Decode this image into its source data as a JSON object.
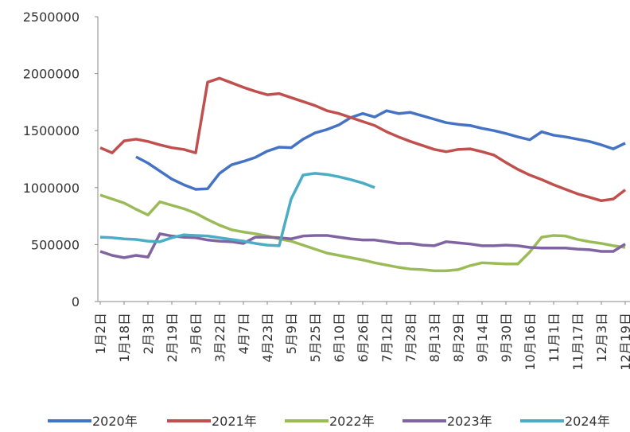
{
  "chart_data": {
    "type": "line",
    "categories": [
      "1月2日",
      null,
      "1月18日",
      null,
      "2月3日",
      null,
      "2月19日",
      null,
      "3月6日",
      null,
      "3月22日",
      null,
      "4月7日",
      null,
      "4月23日",
      null,
      "5月9日",
      null,
      "5月25日",
      null,
      "6月10日",
      null,
      "6月26日",
      null,
      "7月12日",
      null,
      "7月28日",
      null,
      "8月13日",
      null,
      "8月29日",
      null,
      "9月14日",
      null,
      "9月30日",
      null,
      "10月16日",
      null,
      "11月1日",
      null,
      "11月17日",
      null,
      "12月3日",
      null,
      "12月19日"
    ],
    "ylim": [
      0,
      2500000
    ],
    "yticks": [
      0,
      500000,
      1000000,
      1500000,
      2000000,
      2500000
    ],
    "series": [
      {
        "name": "2020年",
        "color": "#4472c4",
        "values": [
          null,
          null,
          null,
          1270000,
          1215000,
          1145000,
          1075000,
          1025000,
          985000,
          990000,
          1125000,
          1200000,
          1230000,
          1265000,
          1320000,
          1355000,
          1350000,
          1425000,
          1480000,
          1510000,
          1550000,
          1615000,
          1650000,
          1620000,
          1675000,
          1650000,
          1660000,
          1630000,
          1600000,
          1570000,
          1555000,
          1545000,
          1520000,
          1500000,
          1475000,
          1445000,
          1420000,
          1490000,
          1460000,
          1445000,
          1425000,
          1405000,
          1375000,
          1340000,
          1390000
        ]
      },
      {
        "name": "2021年",
        "color": "#c0504d",
        "values": [
          1350000,
          1305000,
          1410000,
          1425000,
          1405000,
          1375000,
          1350000,
          1335000,
          1305000,
          1925000,
          1960000,
          1920000,
          1880000,
          1845000,
          1815000,
          1825000,
          1790000,
          1755000,
          1720000,
          1675000,
          1650000,
          1615000,
          1580000,
          1545000,
          1490000,
          1445000,
          1405000,
          1370000,
          1335000,
          1315000,
          1335000,
          1340000,
          1315000,
          1285000,
          1220000,
          1160000,
          1110000,
          1070000,
          1025000,
          985000,
          945000,
          915000,
          885000,
          900000,
          980000
        ]
      },
      {
        "name": "2022年",
        "color": "#9bbb59",
        "values": [
          935000,
          900000,
          865000,
          810000,
          760000,
          875000,
          845000,
          815000,
          775000,
          720000,
          670000,
          630000,
          610000,
          595000,
          575000,
          550000,
          530000,
          495000,
          460000,
          425000,
          405000,
          385000,
          365000,
          340000,
          320000,
          300000,
          285000,
          280000,
          270000,
          270000,
          280000,
          315000,
          340000,
          335000,
          330000,
          330000,
          435000,
          565000,
          580000,
          575000,
          545000,
          525000,
          510000,
          490000,
          475000
        ]
      },
      {
        "name": "2023年",
        "color": "#8064a2",
        "values": [
          440000,
          405000,
          385000,
          405000,
          390000,
          595000,
          575000,
          565000,
          560000,
          540000,
          530000,
          525000,
          510000,
          565000,
          565000,
          560000,
          550000,
          575000,
          580000,
          580000,
          565000,
          550000,
          540000,
          540000,
          525000,
          510000,
          510000,
          495000,
          490000,
          525000,
          515000,
          505000,
          490000,
          490000,
          495000,
          490000,
          475000,
          470000,
          470000,
          470000,
          460000,
          455000,
          440000,
          440000,
          505000
        ]
      },
      {
        "name": "2024年",
        "color": "#4bacc6",
        "values": [
          565000,
          560000,
          550000,
          545000,
          530000,
          525000,
          560000,
          585000,
          580000,
          575000,
          560000,
          545000,
          530000,
          510000,
          495000,
          490000,
          900000,
          1110000,
          1125000,
          1115000,
          1095000,
          1070000,
          1040000,
          1000000,
          null,
          null,
          null,
          null,
          null,
          null,
          null,
          null,
          null,
          null,
          null,
          null,
          null,
          null,
          null,
          null,
          null,
          null,
          null,
          null,
          null
        ]
      }
    ]
  }
}
